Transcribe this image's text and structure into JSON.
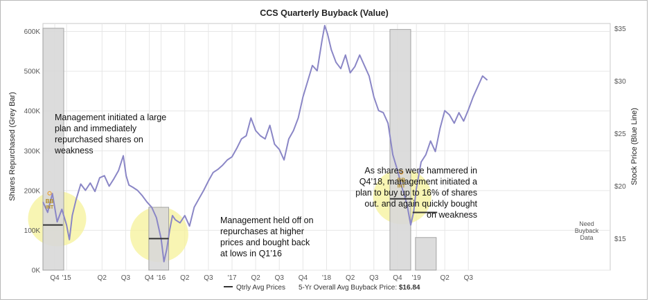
{
  "chart_data": {
    "type": "bar+line",
    "title": "CCS Quarterly Buyback (Value)",
    "ylabel_left": "Shares Repurchased (Grey Bar)",
    "ylabel_right": "Stock Price (Blue Line)",
    "ylim_left": [
      0,
      620000
    ],
    "ylim_right": [
      12,
      35.5
    ],
    "y_left_ticks": [
      {
        "v": 0,
        "label": "0K"
      },
      {
        "v": 100000,
        "label": "100K"
      },
      {
        "v": 200000,
        "label": "200K"
      },
      {
        "v": 300000,
        "label": "300K"
      },
      {
        "v": 400000,
        "label": "400K"
      },
      {
        "v": 500000,
        "label": "500K"
      },
      {
        "v": 600000,
        "label": "600K"
      }
    ],
    "y_right_ticks": [
      {
        "v": 15,
        "label": "$15"
      },
      {
        "v": 20,
        "label": "$20"
      },
      {
        "v": 25,
        "label": "$25"
      },
      {
        "v": 30,
        "label": "$30"
      },
      {
        "v": 35,
        "label": "$35"
      }
    ],
    "xlim": [
      2014.75,
      2020.75
    ],
    "x_ticks": [
      {
        "v": 2014.875,
        "label": "Q4"
      },
      {
        "v": 2015.0,
        "label": "'15"
      },
      {
        "v": 2015.375,
        "label": "Q2"
      },
      {
        "v": 2015.625,
        "label": "Q3"
      },
      {
        "v": 2015.875,
        "label": "Q4"
      },
      {
        "v": 2016.0,
        "label": "'16"
      },
      {
        "v": 2016.25,
        "label": "Q2"
      },
      {
        "v": 2016.5,
        "label": "Q3"
      },
      {
        "v": 2016.75,
        "label": "'17"
      },
      {
        "v": 2017.0,
        "label": "Q2"
      },
      {
        "v": 2017.25,
        "label": "Q3"
      },
      {
        "v": 2017.5,
        "label": "Q4"
      },
      {
        "v": 2017.75,
        "label": "'18"
      },
      {
        "v": 2018.0,
        "label": "Q2"
      },
      {
        "v": 2018.25,
        "label": "Q3"
      },
      {
        "v": 2018.5,
        "label": "Q4"
      },
      {
        "v": 2018.7,
        "label": "'19"
      },
      {
        "v": 2019.0,
        "label": "Q2"
      },
      {
        "v": 2019.25,
        "label": "Q3"
      }
    ],
    "bars": [
      {
        "x0": 2014.75,
        "x1": 2014.97,
        "value": 608000
      },
      {
        "x0": 2015.87,
        "x1": 2016.08,
        "value": 158000
      },
      {
        "x0": 2018.42,
        "x1": 2018.64,
        "value": 605000
      },
      {
        "x0": 2018.69,
        "x1": 2018.91,
        "value": 82000
      }
    ],
    "qtrly_avg_prices": [
      {
        "x0": 2014.75,
        "x1": 2014.96,
        "price": 16.3
      },
      {
        "x0": 2015.87,
        "x1": 2016.08,
        "price": 15.0
      },
      {
        "x0": 2018.42,
        "x1": 2018.66,
        "price": 18.8
      },
      {
        "x0": 2018.66,
        "x1": 2018.92,
        "price": 17.5
      }
    ],
    "price_series": [
      [
        2014.75,
        18.5
      ],
      [
        2014.8,
        17.5
      ],
      [
        2014.85,
        19.3
      ],
      [
        2014.9,
        16.6
      ],
      [
        2014.95,
        17.8
      ],
      [
        2015.0,
        16.3
      ],
      [
        2015.03,
        14.9
      ],
      [
        2015.06,
        17.2
      ],
      [
        2015.1,
        18.7
      ],
      [
        2015.15,
        20.2
      ],
      [
        2015.2,
        19.6
      ],
      [
        2015.25,
        20.3
      ],
      [
        2015.3,
        19.5
      ],
      [
        2015.35,
        20.8
      ],
      [
        2015.4,
        21.0
      ],
      [
        2015.45,
        20.0
      ],
      [
        2015.5,
        20.7
      ],
      [
        2015.55,
        21.5
      ],
      [
        2015.6,
        22.9
      ],
      [
        2015.63,
        21.0
      ],
      [
        2015.66,
        20.1
      ],
      [
        2015.7,
        19.9
      ],
      [
        2015.75,
        19.6
      ],
      [
        2015.8,
        19.1
      ],
      [
        2015.85,
        18.5
      ],
      [
        2015.9,
        18.0
      ],
      [
        2015.95,
        17.0
      ],
      [
        2016.0,
        15.0
      ],
      [
        2016.03,
        12.8
      ],
      [
        2016.06,
        14.0
      ],
      [
        2016.09,
        15.8
      ],
      [
        2016.12,
        17.2
      ],
      [
        2016.15,
        16.8
      ],
      [
        2016.2,
        16.5
      ],
      [
        2016.25,
        17.2
      ],
      [
        2016.3,
        16.2
      ],
      [
        2016.35,
        18.0
      ],
      [
        2016.4,
        18.8
      ],
      [
        2016.45,
        19.6
      ],
      [
        2016.5,
        20.5
      ],
      [
        2016.55,
        21.3
      ],
      [
        2016.6,
        21.6
      ],
      [
        2016.65,
        22.0
      ],
      [
        2016.7,
        22.5
      ],
      [
        2016.75,
        22.8
      ],
      [
        2016.8,
        23.6
      ],
      [
        2016.85,
        24.5
      ],
      [
        2016.9,
        24.8
      ],
      [
        2016.95,
        26.5
      ],
      [
        2017.0,
        25.3
      ],
      [
        2017.05,
        24.8
      ],
      [
        2017.1,
        24.5
      ],
      [
        2017.15,
        25.8
      ],
      [
        2017.2,
        24.0
      ],
      [
        2017.25,
        23.5
      ],
      [
        2017.3,
        22.5
      ],
      [
        2017.35,
        24.5
      ],
      [
        2017.4,
        25.3
      ],
      [
        2017.45,
        26.5
      ],
      [
        2017.5,
        28.5
      ],
      [
        2017.55,
        30.0
      ],
      [
        2017.6,
        31.5
      ],
      [
        2017.65,
        31.0
      ],
      [
        2017.7,
        33.8
      ],
      [
        2017.73,
        35.3
      ],
      [
        2017.76,
        34.5
      ],
      [
        2017.8,
        33.0
      ],
      [
        2017.85,
        31.8
      ],
      [
        2017.9,
        31.2
      ],
      [
        2017.95,
        32.5
      ],
      [
        2018.0,
        30.8
      ],
      [
        2018.05,
        31.4
      ],
      [
        2018.1,
        32.5
      ],
      [
        2018.15,
        31.5
      ],
      [
        2018.2,
        30.5
      ],
      [
        2018.25,
        28.5
      ],
      [
        2018.3,
        27.2
      ],
      [
        2018.35,
        27.0
      ],
      [
        2018.4,
        26.0
      ],
      [
        2018.45,
        23.0
      ],
      [
        2018.5,
        21.5
      ],
      [
        2018.55,
        19.8
      ],
      [
        2018.6,
        18.3
      ],
      [
        2018.64,
        16.3
      ],
      [
        2018.67,
        17.5
      ],
      [
        2018.7,
        19.8
      ],
      [
        2018.75,
        22.3
      ],
      [
        2018.8,
        23.0
      ],
      [
        2018.85,
        24.3
      ],
      [
        2018.9,
        23.3
      ],
      [
        2018.95,
        25.5
      ],
      [
        2019.0,
        27.2
      ],
      [
        2019.05,
        26.8
      ],
      [
        2019.1,
        26.0
      ],
      [
        2019.15,
        27.0
      ],
      [
        2019.2,
        26.2
      ],
      [
        2019.25,
        27.3
      ],
      [
        2019.3,
        28.5
      ],
      [
        2019.35,
        29.5
      ],
      [
        2019.4,
        30.5
      ],
      [
        2019.45,
        30.1
      ]
    ],
    "legend_label": "Qtrly Avg Prices",
    "overall_avg_label": "5-Yr Overall Avg Buyback Price: ",
    "overall_avg_value": "$16.84",
    "no_data_note": [
      "Need",
      "Buyback",
      "Data"
    ],
    "bb_marker": [
      "BB",
      "INT"
    ],
    "annotations": [
      {
        "lines": [
          "Management initiated a large",
          "plan and immediately",
          "repurchased shares on",
          "weakness"
        ]
      },
      {
        "lines": [
          "Management held off on",
          "repurchases at higher",
          "prices and bought back",
          "at lows in Q1’16"
        ]
      },
      {
        "lines": [
          "As shares were hammered in",
          "Q4’18, management initiated a",
          "plan to buy up to 16% of shares",
          "out. and again quickly bought",
          "on weakness"
        ]
      }
    ],
    "colors": {
      "bar": "#d9d9d9",
      "bar_stroke": "#9a9a9a",
      "price_line": "#8a86c6",
      "avg_line": "#333333",
      "highlight": "#f6f29a",
      "bb": "#b08a20",
      "grid": "#e6e6e6"
    }
  }
}
